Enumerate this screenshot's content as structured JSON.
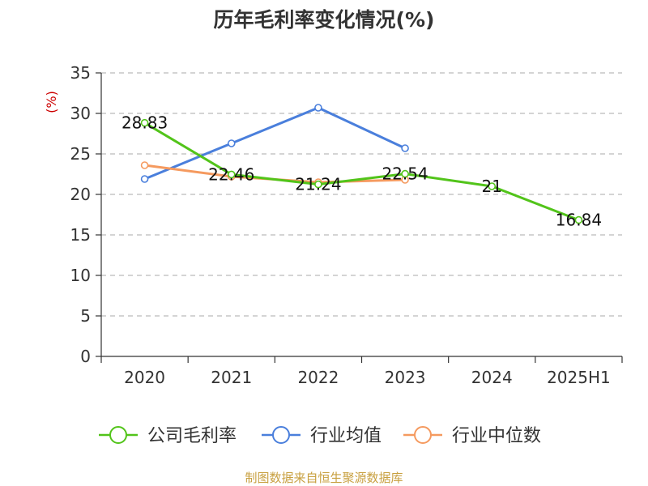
{
  "chart_data": {
    "type": "line",
    "title": "历年毛利率变化情况(%)",
    "ylabel": "(%)",
    "categories": [
      "2020",
      "2021",
      "2022",
      "2023",
      "2024",
      "2025H1"
    ],
    "ylim": [
      0,
      35
    ],
    "yticks": [
      0,
      5,
      10,
      15,
      20,
      25,
      30,
      35
    ],
    "grid": true,
    "legend_position": "bottom",
    "series": [
      {
        "name": "公司毛利率",
        "color": "#52c41a",
        "values": [
          28.83,
          22.46,
          21.24,
          22.54,
          21,
          16.84
        ],
        "labels": [
          "28.83",
          "22.46",
          "21.24",
          "22.54",
          "21",
          "16.84"
        ]
      },
      {
        "name": "行业均值",
        "color": "#4a7fdc",
        "values": [
          21.9,
          26.3,
          30.7,
          25.7,
          null,
          null
        ]
      },
      {
        "name": "行业中位数",
        "color": "#f59a5f",
        "values": [
          23.6,
          22.2,
          21.5,
          21.8,
          null,
          null
        ]
      }
    ]
  },
  "source": "制图数据来自恒生聚源数据库"
}
